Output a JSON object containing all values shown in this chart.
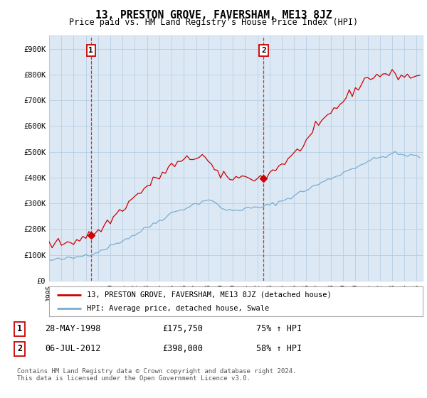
{
  "title": "13, PRESTON GROVE, FAVERSHAM, ME13 8JZ",
  "subtitle": "Price paid vs. HM Land Registry's House Price Index (HPI)",
  "legend_line1": "13, PRESTON GROVE, FAVERSHAM, ME13 8JZ (detached house)",
  "legend_line2": "HPI: Average price, detached house, Swale",
  "sale1_label": "1",
  "sale1_date": "28-MAY-1998",
  "sale1_price": "£175,750",
  "sale1_hpi": "75% ↑ HPI",
  "sale1_x": 1998.41,
  "sale1_y": 175750,
  "sale2_label": "2",
  "sale2_date": "06-JUL-2012",
  "sale2_price": "£398,000",
  "sale2_hpi": "58% ↑ HPI",
  "sale2_x": 2012.51,
  "sale2_y": 398000,
  "footnote": "Contains HM Land Registry data © Crown copyright and database right 2024.\nThis data is licensed under the Open Government Licence v3.0.",
  "red_color": "#cc0000",
  "blue_color": "#7aadcf",
  "chart_bg": "#dce9f5",
  "grid_color": "#b0c8e0",
  "background_color": "#ffffff",
  "ylim": [
    0,
    950000
  ],
  "xlim_start": 1995,
  "xlim_end": 2025.5,
  "yticks": [
    0,
    100000,
    200000,
    300000,
    400000,
    500000,
    600000,
    700000,
    800000,
    900000
  ],
  "ytick_labels": [
    "£0",
    "£100K",
    "£200K",
    "£300K",
    "£400K",
    "£500K",
    "£600K",
    "£700K",
    "£800K",
    "£900K"
  ]
}
